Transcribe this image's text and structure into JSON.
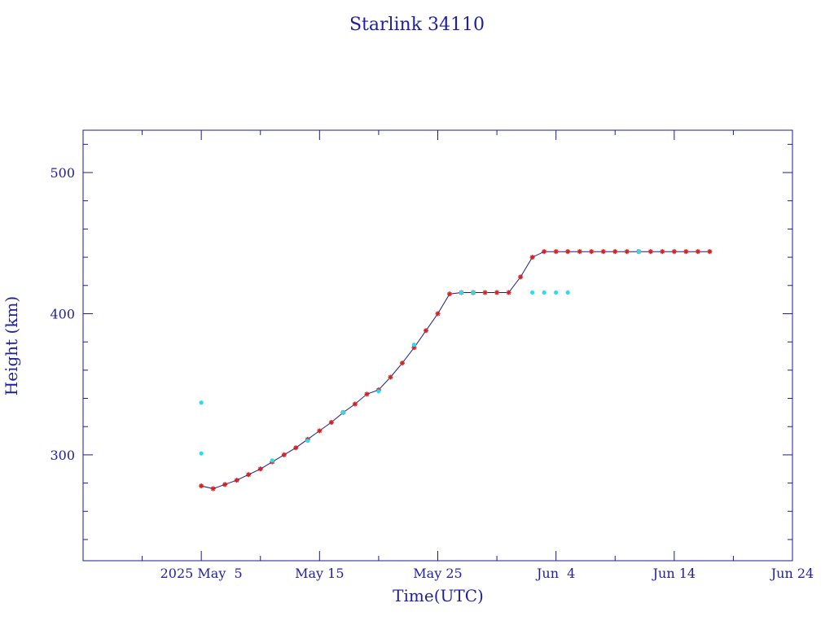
{
  "chart_data": {
    "type": "scatter",
    "title": "Starlink 34110",
    "xlabel": "Time(UTC)",
    "ylabel": "Height (km)",
    "x_unit": "date (UTC)",
    "xlim": [
      "2025-04-25",
      "2025-06-24"
    ],
    "ylim": [
      225,
      530
    ],
    "grid": false,
    "legend": "none",
    "x_ticks": [
      {
        "date": "2025-05-05",
        "label": "2025 May  5"
      },
      {
        "date": "2025-05-15",
        "label": "May 15"
      },
      {
        "date": "2025-05-25",
        "label": "May 25"
      },
      {
        "date": "2025-06-04",
        "label": "Jun  4"
      },
      {
        "date": "2025-06-14",
        "label": "Jun 14"
      },
      {
        "date": "2025-06-24",
        "label": "Jun 24"
      }
    ],
    "y_ticks": [
      300,
      400,
      500
    ],
    "series": [
      {
        "color": "#d42222",
        "marker": "star",
        "line": true,
        "line_color": "#1a1a8c",
        "points": [
          [
            "2025-05-05",
            278
          ],
          [
            "2025-05-06",
            276
          ],
          [
            "2025-05-07",
            279
          ],
          [
            "2025-05-08",
            282
          ],
          [
            "2025-05-09",
            286
          ],
          [
            "2025-05-10",
            290
          ],
          [
            "2025-05-11",
            295
          ],
          [
            "2025-05-12",
            300
          ],
          [
            "2025-05-13",
            305
          ],
          [
            "2025-05-14",
            311
          ],
          [
            "2025-05-15",
            317
          ],
          [
            "2025-05-16",
            323
          ],
          [
            "2025-05-17",
            330
          ],
          [
            "2025-05-18",
            336
          ],
          [
            "2025-05-19",
            343
          ],
          [
            "2025-05-20",
            346
          ],
          [
            "2025-05-21",
            355
          ],
          [
            "2025-05-22",
            365
          ],
          [
            "2025-05-23",
            376
          ],
          [
            "2025-05-24",
            388
          ],
          [
            "2025-05-25",
            400
          ],
          [
            "2025-05-26",
            414
          ],
          [
            "2025-05-27",
            415
          ],
          [
            "2025-05-28",
            415
          ],
          [
            "2025-05-29",
            415
          ],
          [
            "2025-05-30",
            415
          ],
          [
            "2025-05-31",
            415
          ],
          [
            "2025-06-01",
            426
          ],
          [
            "2025-06-02",
            440
          ],
          [
            "2025-06-03",
            444
          ],
          [
            "2025-06-04",
            444
          ],
          [
            "2025-06-05",
            444
          ],
          [
            "2025-06-06",
            444
          ],
          [
            "2025-06-07",
            444
          ],
          [
            "2025-06-08",
            444
          ],
          [
            "2025-06-09",
            444
          ],
          [
            "2025-06-10",
            444
          ],
          [
            "2025-06-11",
            444
          ],
          [
            "2025-06-12",
            444
          ],
          [
            "2025-06-13",
            444
          ],
          [
            "2025-06-14",
            444
          ],
          [
            "2025-06-15",
            444
          ],
          [
            "2025-06-16",
            444
          ],
          [
            "2025-06-17",
            444
          ]
        ]
      },
      {
        "color": "#22e0ee",
        "marker": "dot",
        "line": false,
        "points": [
          [
            "2025-05-05",
            337
          ],
          [
            "2025-05-05",
            301
          ],
          [
            "2025-05-11",
            296
          ],
          [
            "2025-05-14",
            310
          ],
          [
            "2025-05-17",
            330
          ],
          [
            "2025-05-20",
            345
          ],
          [
            "2025-05-23",
            378
          ],
          [
            "2025-05-27",
            415
          ],
          [
            "2025-05-28",
            415
          ],
          [
            "2025-06-02",
            415
          ],
          [
            "2025-06-03",
            415
          ],
          [
            "2025-06-04",
            415
          ],
          [
            "2025-06-05",
            415
          ],
          [
            "2025-06-11",
            444
          ]
        ]
      }
    ]
  }
}
